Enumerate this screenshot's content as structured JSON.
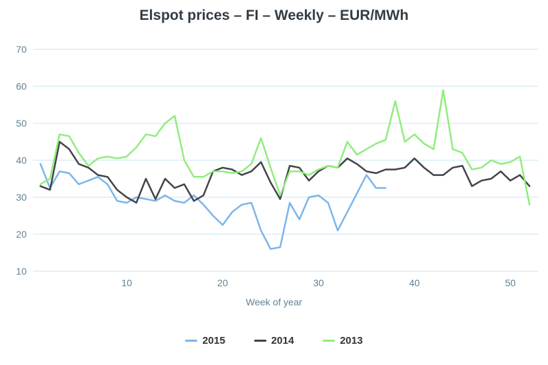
{
  "chart_data": {
    "type": "line",
    "title": "Elspot prices – FI – Weekly – EUR/MWh",
    "xlabel": "Week of year",
    "ylabel": "",
    "xlim": [
      1,
      52
    ],
    "ylim": [
      10,
      70
    ],
    "xticks": [
      10,
      20,
      30,
      40,
      50
    ],
    "yticks": [
      10,
      20,
      30,
      40,
      50,
      60,
      70
    ],
    "grid": "horizontal",
    "legend_position": "bottom",
    "style": {
      "grid_color": "#c9e6f2",
      "tick_label_color": "#5f8294",
      "title_color": "#333c45",
      "legend_text_color": "#333333"
    },
    "series": [
      {
        "name": "2015",
        "color": "#7cb5ec",
        "start_week": 1,
        "values": [
          39,
          32.5,
          37,
          36.5,
          33.5,
          34.5,
          35.5,
          33.5,
          29,
          28.5,
          30,
          29.5,
          29,
          30.5,
          29,
          28.5,
          30.5,
          28,
          25,
          22.5,
          26,
          28,
          28.5,
          21,
          16,
          16.5,
          28.5,
          24,
          30,
          30.5,
          28.5,
          21,
          26,
          31,
          36,
          32.5,
          32.5
        ]
      },
      {
        "name": "2014",
        "color": "#434348",
        "start_week": 1,
        "values": [
          33,
          32,
          45,
          43,
          39,
          38,
          36,
          35.5,
          32,
          30,
          28.5,
          35,
          29.5,
          35,
          32.5,
          33.5,
          29,
          30.5,
          37,
          38,
          37.5,
          36,
          37,
          39.5,
          34,
          29.5,
          38.5,
          38,
          34.5,
          37,
          38.5,
          38,
          40.5,
          39,
          37,
          36.5,
          37.5,
          37.5,
          38,
          40.5,
          38,
          36,
          36,
          38,
          38.5,
          33,
          34.5,
          35,
          37,
          34.5,
          36,
          33
        ]
      },
      {
        "name": "2013",
        "color": "#90ed7d",
        "start_week": 1,
        "values": [
          33.5,
          35,
          47,
          46.5,
          42,
          38.5,
          40.5,
          41,
          40.5,
          41,
          43.5,
          47,
          46.5,
          50,
          52,
          40,
          35.5,
          35.5,
          37,
          37,
          36.5,
          37,
          39,
          46,
          38,
          30.5,
          37,
          37,
          36,
          37.5,
          38.5,
          38,
          45,
          41.5,
          43,
          44.5,
          45.5,
          56,
          45,
          47,
          44.5,
          43,
          59,
          43,
          42,
          37.5,
          38,
          40,
          39,
          39.5,
          41,
          28
        ]
      }
    ]
  }
}
